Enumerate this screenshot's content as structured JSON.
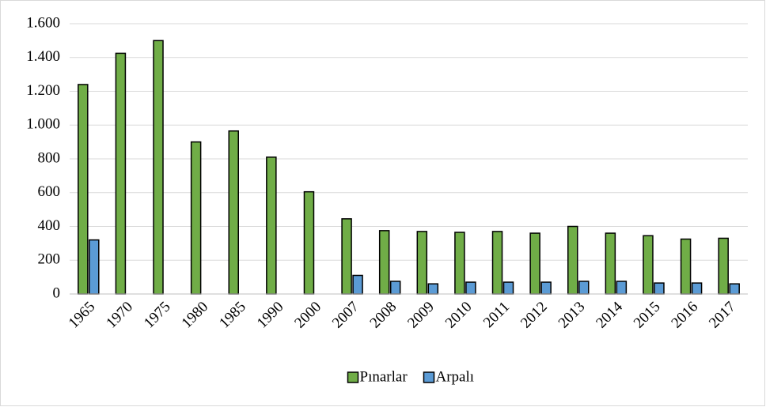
{
  "chart_data": {
    "type": "bar",
    "categories": [
      "1965",
      "1970",
      "1975",
      "1980",
      "1985",
      "1990",
      "2000",
      "2007",
      "2008",
      "2009",
      "2010",
      "2011",
      "2012",
      "2013",
      "2014",
      "2015",
      "2016",
      "2017"
    ],
    "series": [
      {
        "name": "Pınarlar",
        "color": "#70ad47",
        "values": [
          1240,
          1425,
          1500,
          900,
          965,
          810,
          605,
          445,
          375,
          370,
          365,
          370,
          360,
          400,
          360,
          345,
          325,
          330
        ]
      },
      {
        "name": "Arpalı",
        "color": "#5b9bd5",
        "values": [
          320,
          null,
          null,
          null,
          null,
          null,
          null,
          110,
          75,
          60,
          70,
          70,
          70,
          75,
          75,
          65,
          65,
          60
        ]
      }
    ],
    "ylim": [
      0,
      1600
    ],
    "yticks": [
      0,
      200,
      400,
      600,
      800,
      {
        "value": 1000,
        "label": "1.000"
      },
      {
        "value": 1200,
        "label": "1.200"
      },
      {
        "value": 1400,
        "label": "1.400"
      },
      {
        "value": 1600,
        "label": "1.600"
      }
    ],
    "grid": true,
    "legend": "bottom"
  }
}
